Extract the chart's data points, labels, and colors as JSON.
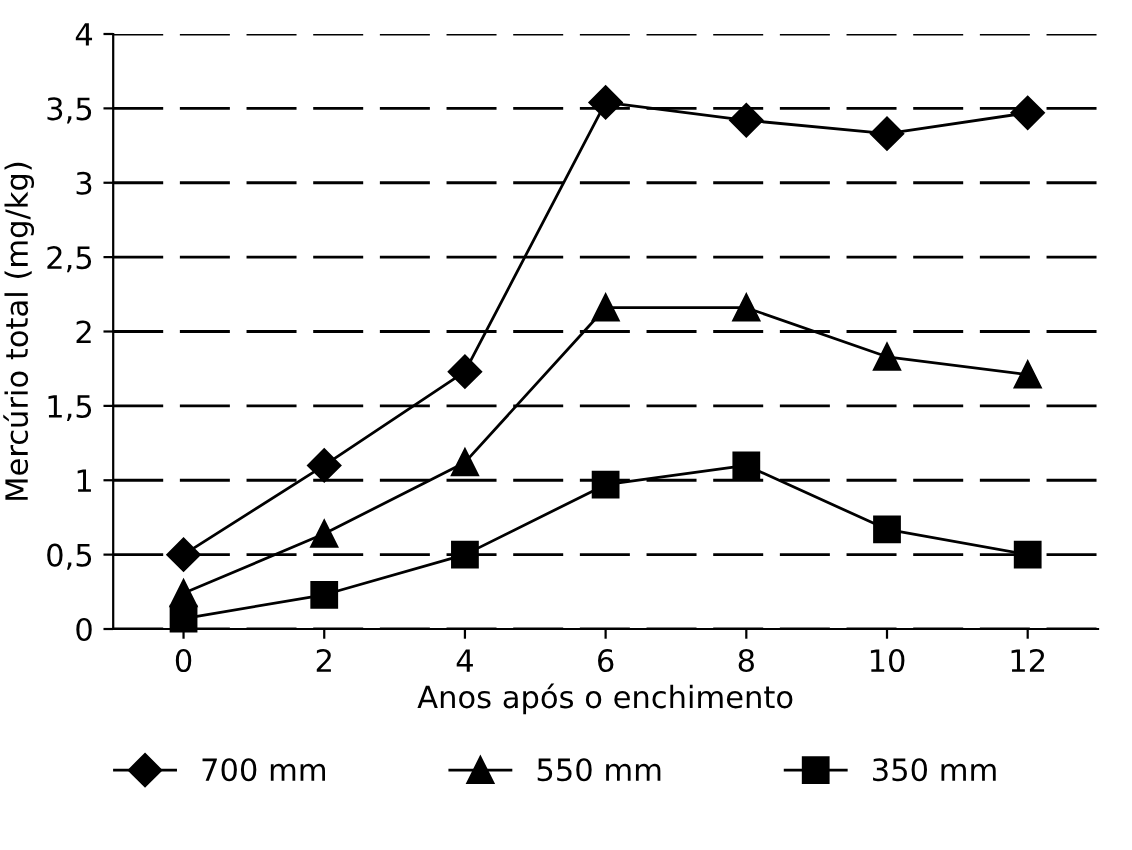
{
  "chart_data": {
    "type": "line",
    "xlabel": "Anos após o enchimento",
    "ylabel": "Mercúrio total (mg/kg)",
    "x": [
      0,
      2,
      4,
      6,
      8,
      10,
      12
    ],
    "series": [
      {
        "name": "700 mm",
        "color": "#000000",
        "marker": "diamond",
        "values": [
          0.5,
          1.1,
          1.73,
          3.54,
          3.42,
          3.33,
          3.47
        ]
      },
      {
        "name": "550 mm",
        "color": "#000000",
        "marker": "triangle",
        "values": [
          0.24,
          0.64,
          1.12,
          2.16,
          2.16,
          1.83,
          1.71
        ]
      },
      {
        "name": "350 mm",
        "color": "#000000",
        "marker": "square",
        "values": [
          0.07,
          0.23,
          0.5,
          0.97,
          1.1,
          0.67,
          0.5
        ]
      }
    ],
    "xlim": [
      -1,
      13
    ],
    "xticks": [
      0,
      2,
      4,
      6,
      8,
      10,
      12
    ],
    "ylim": [
      0,
      4
    ],
    "yticks": [
      0,
      {
        "value": 0.5,
        "label": "0,5"
      },
      1,
      {
        "value": 1.5,
        "label": "1,5"
      },
      2,
      {
        "value": 2.5,
        "label": "2,5"
      },
      3,
      {
        "value": 3.5,
        "label": "3,5"
      },
      4
    ],
    "grid": "y",
    "legend": "bottom",
    "line_style": "solid"
  }
}
